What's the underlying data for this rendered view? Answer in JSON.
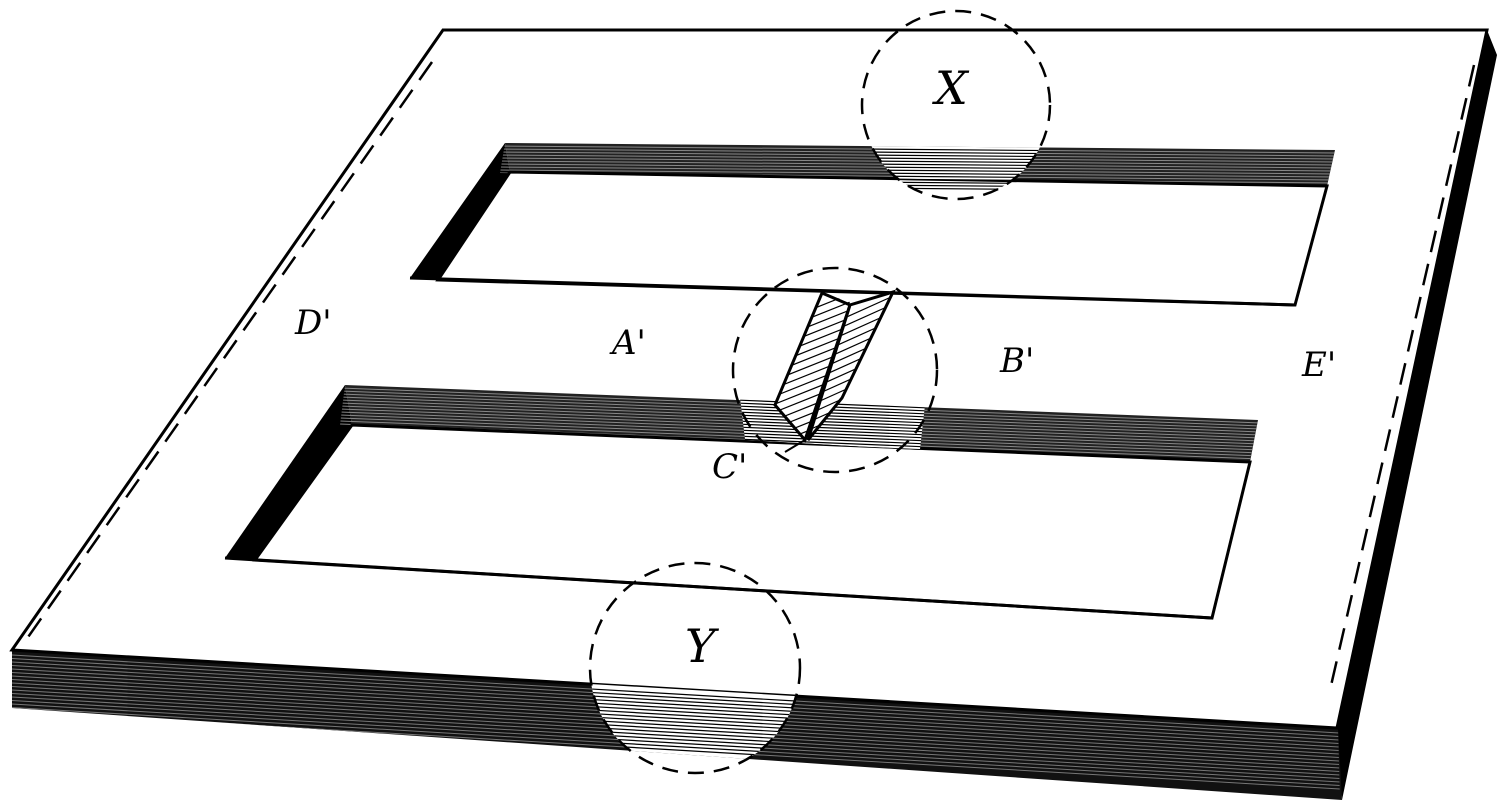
{
  "diagram": {
    "labels": {
      "x": "X",
      "y": "Y",
      "a": "A'",
      "b": "B'",
      "c": "C'",
      "d": "D'",
      "e": "E'"
    },
    "colors": {
      "ink": "#000000",
      "paper": "#ffffff"
    }
  }
}
